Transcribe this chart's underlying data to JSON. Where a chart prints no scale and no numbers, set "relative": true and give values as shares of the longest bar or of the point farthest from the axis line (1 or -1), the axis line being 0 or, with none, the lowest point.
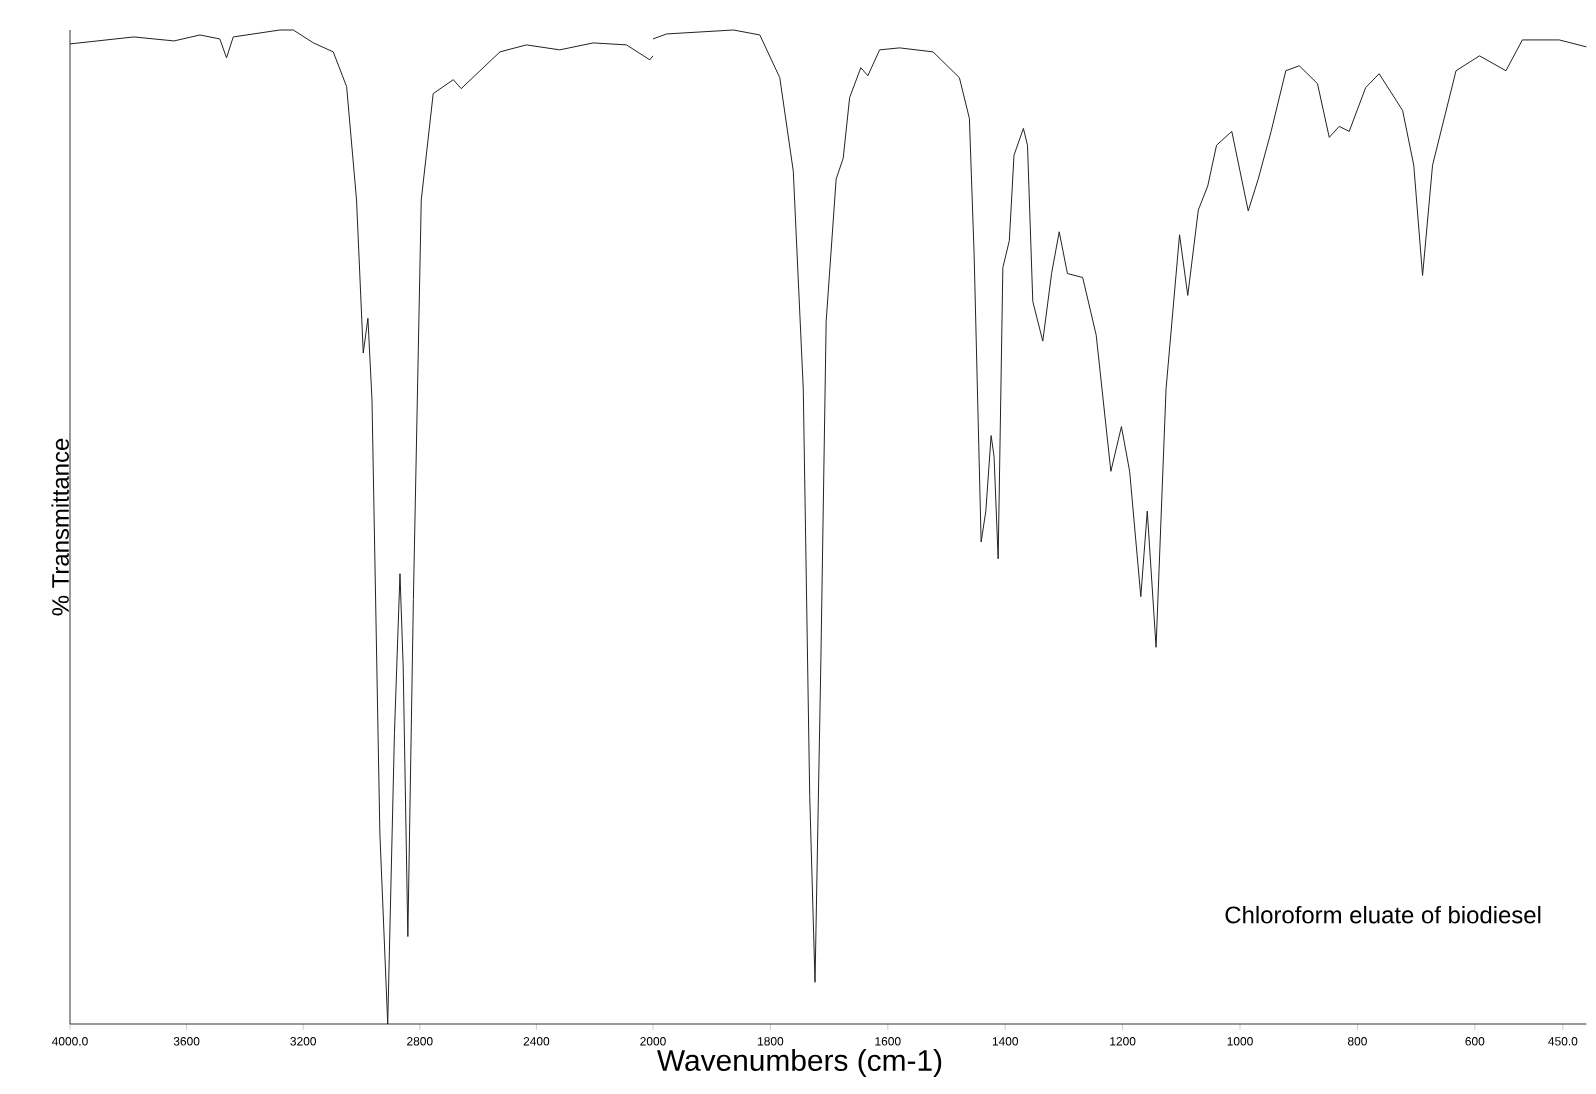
{
  "chart_data": [
    {
      "type": "line",
      "ylabel": "% Transmittance",
      "relative": true,
      "color": "#222222",
      "xlim": [
        4000,
        2000
      ],
      "xticks": [
        {
          "value": 4000,
          "label": "4000.0"
        },
        3600,
        3200,
        2800,
        2400
      ],
      "x": [
        4000,
        3781,
        3643,
        3554,
        3486,
        3463,
        3440,
        3280,
        3234,
        3165,
        3097,
        3051,
        3017,
        2994,
        2978,
        2964,
        2937,
        2910,
        2887,
        2868,
        2857,
        2841,
        2822,
        2795,
        2754,
        2685,
        2658,
        2525,
        2434,
        2320,
        2205,
        2091,
        2011,
        2000
      ],
      "values": [
        0.986,
        0.993,
        0.989,
        0.995,
        0.991,
        0.972,
        0.993,
        1.0,
        1.0,
        0.987,
        0.978,
        0.943,
        0.829,
        0.675,
        0.71,
        0.628,
        0.192,
        0.0,
        0.292,
        0.453,
        0.36,
        0.088,
        0.427,
        0.829,
        0.936,
        0.95,
        0.941,
        0.978,
        0.985,
        0.98,
        0.987,
        0.985,
        0.97,
        0.974
      ]
    },
    {
      "type": "line",
      "xlabel": "Wavenumbers (cm-1)",
      "relative": true,
      "color": "#222222",
      "annotations": [
        "Chloroform eluate of biodiesel"
      ],
      "xlim": [
        2000,
        410
      ],
      "xticks": [
        2000,
        1800,
        1600,
        1400,
        1200,
        1000,
        800,
        600,
        {
          "value": 450,
          "label": "450.0"
        }
      ],
      "x": [
        2000,
        1977,
        1863,
        1818,
        1784,
        1761,
        1744,
        1733,
        1724,
        1714,
        1705,
        1688,
        1676,
        1665,
        1646,
        1634,
        1614,
        1580,
        1523,
        1478,
        1461,
        1453,
        1441,
        1433,
        1424,
        1419,
        1412,
        1404,
        1393,
        1385,
        1369,
        1362,
        1353,
        1336,
        1321,
        1308,
        1294,
        1268,
        1245,
        1220,
        1202,
        1188,
        1169,
        1158,
        1143,
        1126,
        1103,
        1089,
        1071,
        1055,
        1040,
        1014,
        986,
        969,
        947,
        922,
        899,
        868,
        848,
        831,
        814,
        786,
        763,
        723,
        704,
        689,
        672,
        632,
        592,
        547,
        519,
        456,
        410
      ],
      "values": [
        0.991,
        0.996,
        1.0,
        0.995,
        0.952,
        0.858,
        0.639,
        0.229,
        0.042,
        0.366,
        0.707,
        0.85,
        0.871,
        0.932,
        0.962,
        0.954,
        0.98,
        0.982,
        0.978,
        0.952,
        0.911,
        0.775,
        0.485,
        0.516,
        0.592,
        0.571,
        0.468,
        0.761,
        0.788,
        0.874,
        0.901,
        0.884,
        0.727,
        0.687,
        0.755,
        0.797,
        0.755,
        0.751,
        0.693,
        0.556,
        0.601,
        0.556,
        0.43,
        0.516,
        0.379,
        0.639,
        0.794,
        0.733,
        0.819,
        0.843,
        0.884,
        0.898,
        0.818,
        0.85,
        0.898,
        0.959,
        0.964,
        0.946,
        0.892,
        0.903,
        0.898,
        0.942,
        0.956,
        0.919,
        0.864,
        0.753,
        0.864,
        0.959,
        0.974,
        0.959,
        0.99,
        0.99,
        0.983
      ]
    }
  ]
}
